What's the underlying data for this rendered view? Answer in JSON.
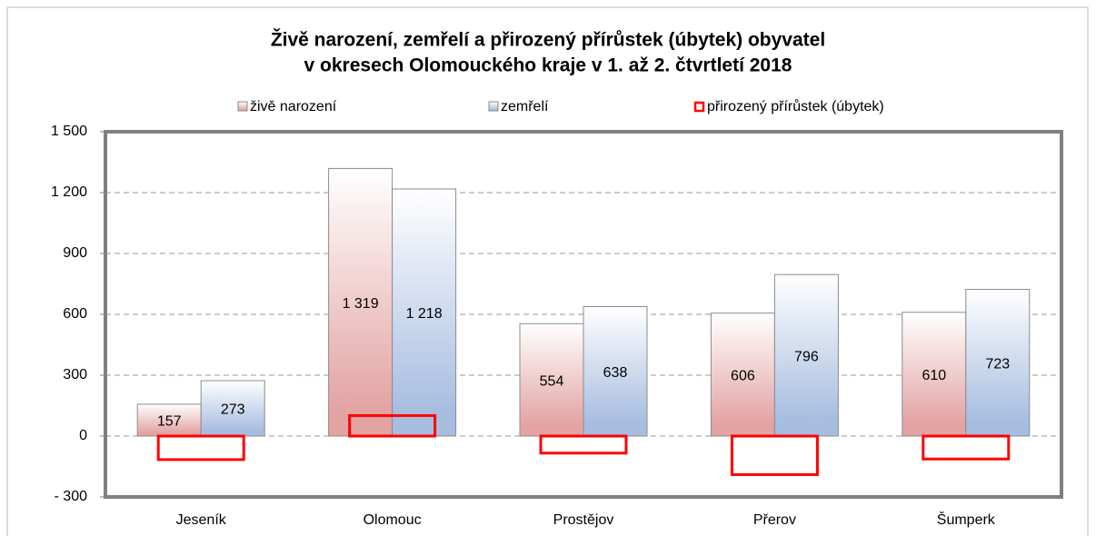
{
  "chart_data": {
    "type": "bar",
    "title": [
      "Živě narození, zemřelí a přirozený přírůstek (úbytek) obyvatel",
      "v okresech Olomouckého kraje v 1. až 2. čtvrtletí 2018"
    ],
    "categories": [
      "Jeseník",
      "Olomouc",
      "Prostějov",
      "Přerov",
      "Šumperk"
    ],
    "series": [
      {
        "name": "živě narození",
        "color": "#e3a3a3",
        "values": [
          157,
          1319,
          554,
          606,
          610
        ],
        "value_labels": [
          "157",
          "1 319",
          "554",
          "606",
          "610"
        ]
      },
      {
        "name": "zemřelí",
        "color": "#a7bde0",
        "values": [
          273,
          1218,
          638,
          796,
          723
        ],
        "value_labels": [
          "273",
          "1 218",
          "638",
          "796",
          "723"
        ]
      },
      {
        "name": "přirozený přírůstek (úbytek)",
        "color": "#ff0000",
        "style": "outline",
        "values": [
          -116,
          101,
          -84,
          -190,
          -113
        ]
      }
    ],
    "ylim": [
      -300,
      1500
    ],
    "yticks": [
      {
        "value": -300,
        "label": "- 300"
      },
      0,
      300,
      600,
      900,
      {
        "value": 1200,
        "label": "1 200"
      },
      {
        "value": 1500,
        "label": "1 500"
      }
    ],
    "grid": true,
    "legend": "top"
  }
}
